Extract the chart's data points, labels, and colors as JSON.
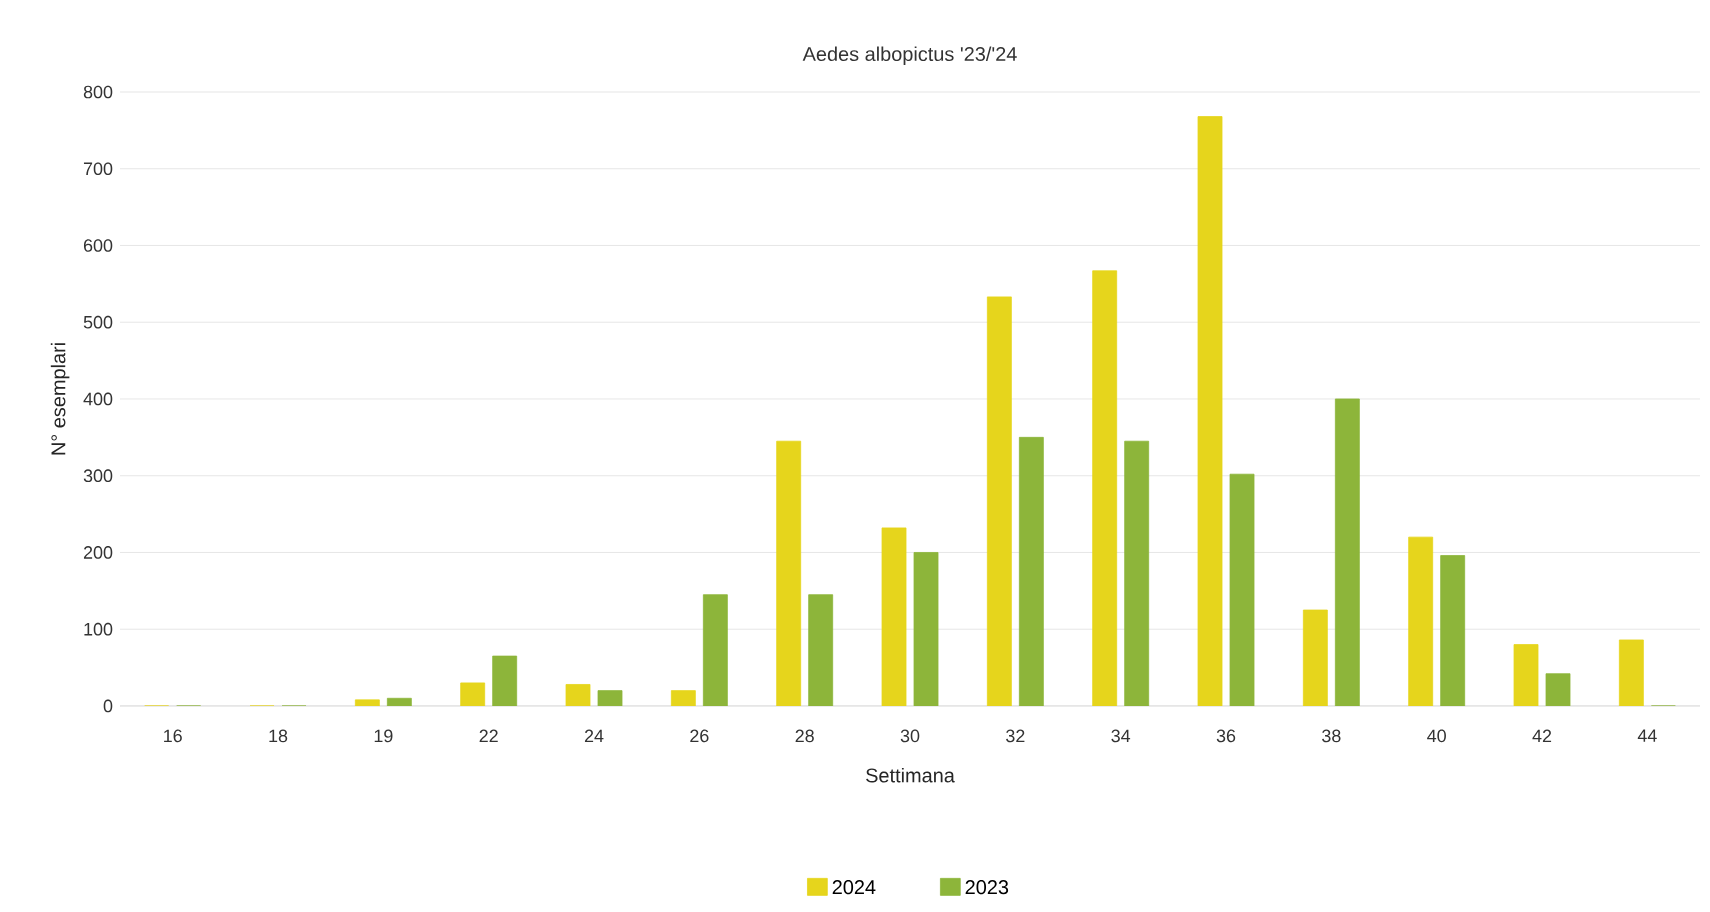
{
  "chart_data": {
    "type": "bar",
    "title": "Aedes albopictus '23/'24",
    "xlabel": "Settimana",
    "ylabel": "N° esemplari",
    "categories": [
      "16",
      "18",
      "19",
      "22",
      "24",
      "26",
      "28",
      "30",
      "32",
      "34",
      "36",
      "38",
      "40",
      "42",
      "44"
    ],
    "series": [
      {
        "name": "2024",
        "color": "#e6d51c",
        "values": [
          0,
          0,
          8,
          30,
          28,
          20,
          345,
          232,
          533,
          567,
          768,
          125,
          220,
          80,
          86
        ]
      },
      {
        "name": "2023",
        "color": "#8db53a",
        "values": [
          0,
          0,
          10,
          65,
          20,
          145,
          145,
          200,
          350,
          345,
          302,
          400,
          196,
          42,
          0
        ]
      }
    ],
    "ylim": [
      0,
      800
    ],
    "yticks": [
      0,
      100,
      200,
      300,
      400,
      500,
      600,
      700,
      800
    ],
    "grid": "y",
    "legend": "bottom"
  }
}
